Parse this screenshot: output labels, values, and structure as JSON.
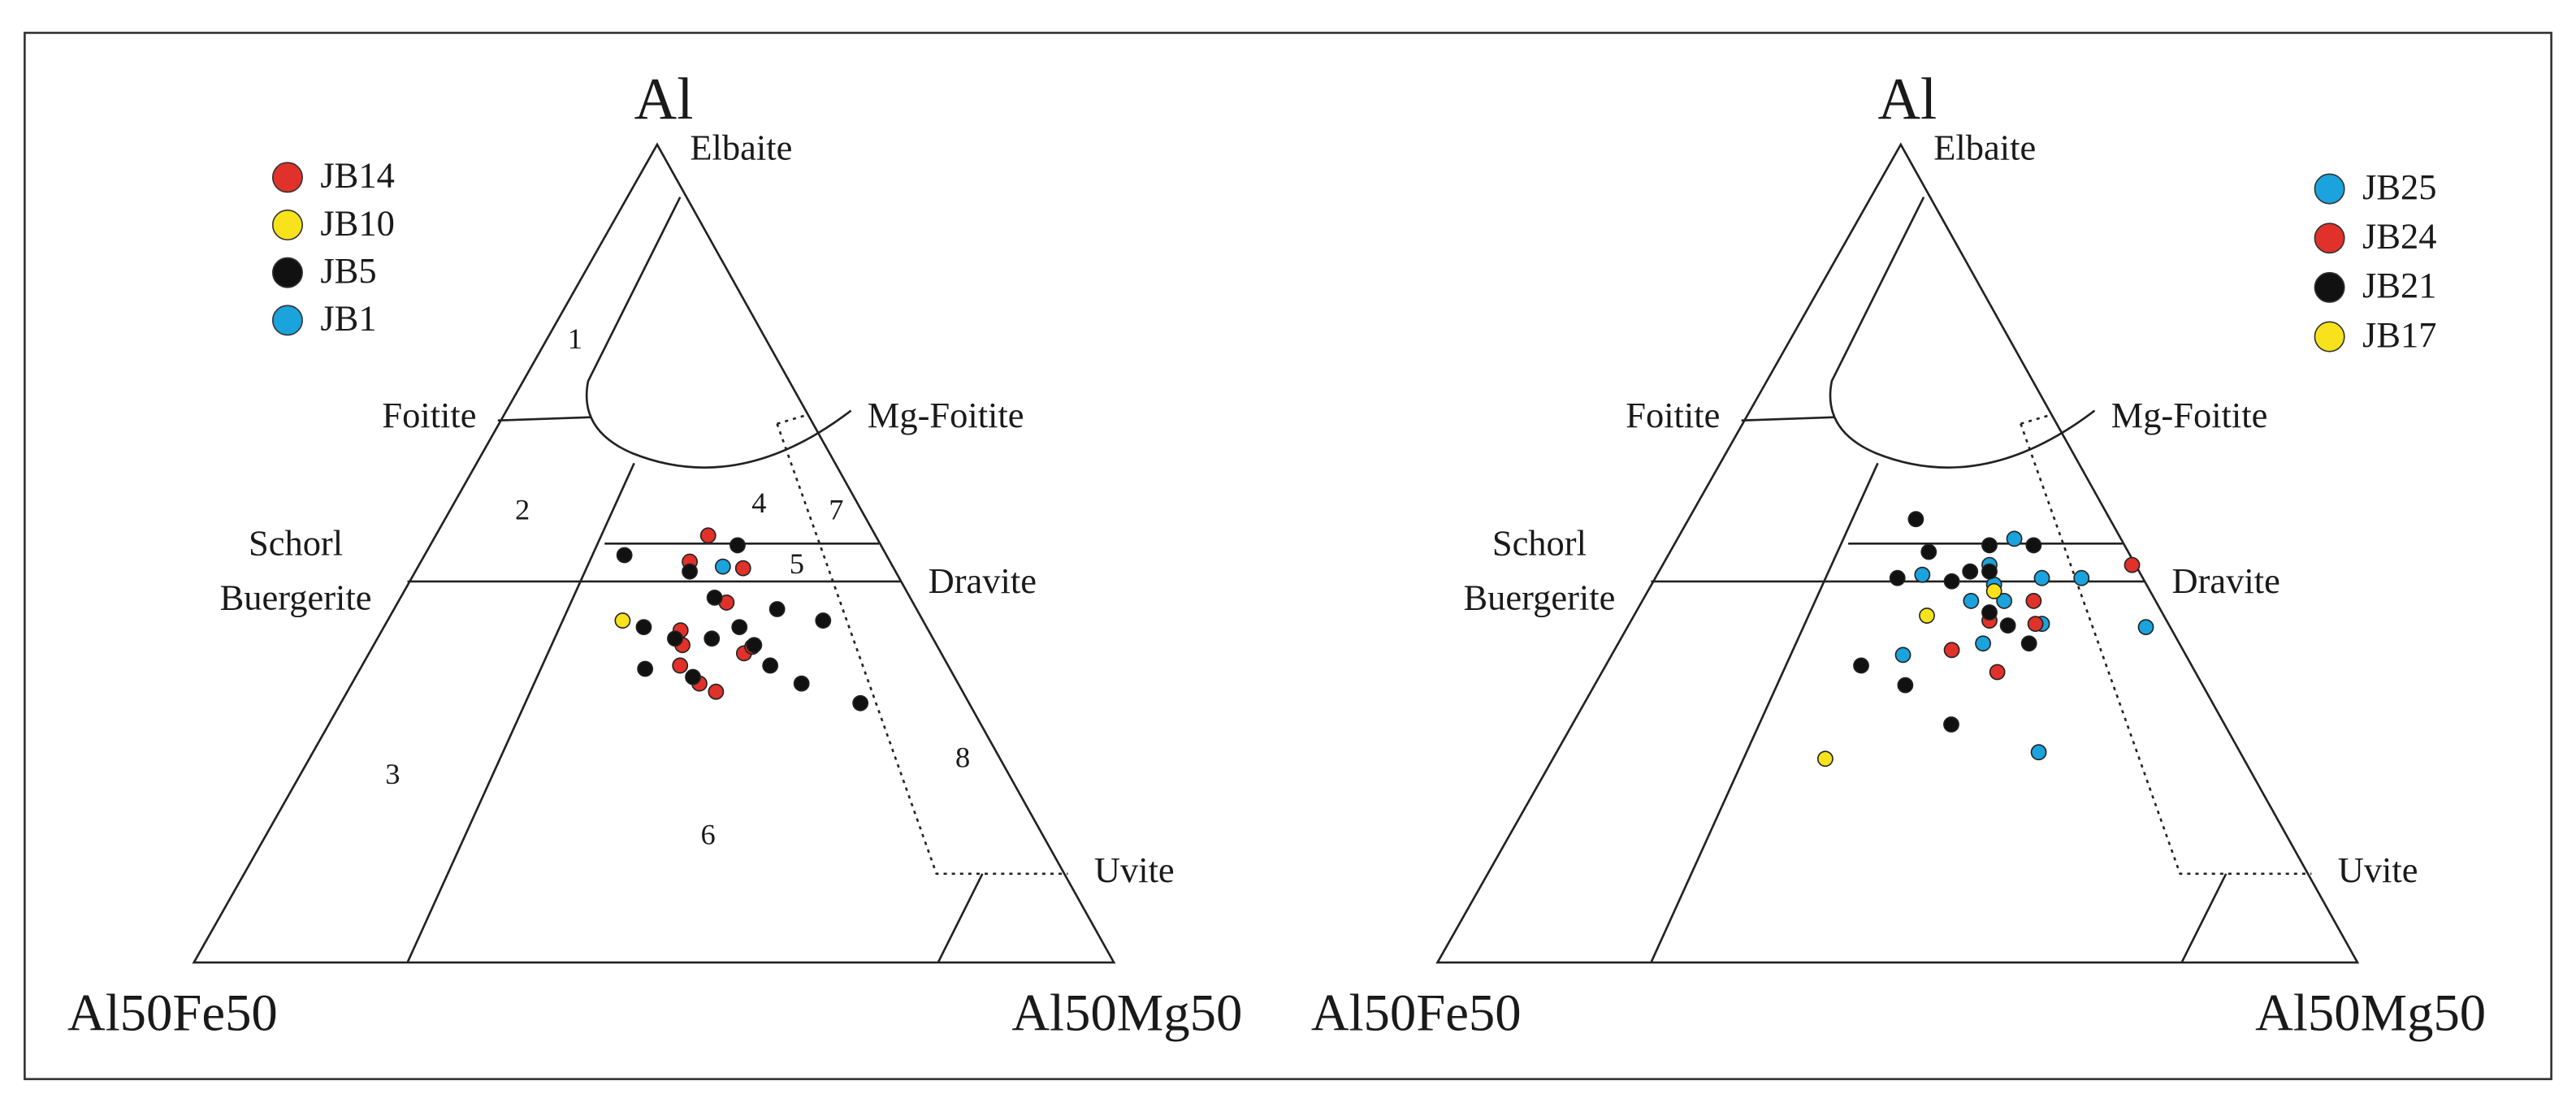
{
  "chart_data": [
    {
      "type": "ternary",
      "apex_label": "Al",
      "left_label": "Al50Fe50",
      "right_label": "Al50Mg50",
      "end_members": [
        "Elbaite",
        "Foitite",
        "Mg-Foitite",
        "Schorl",
        "Buergerite",
        "Dravite",
        "Uvite"
      ],
      "fields": [
        "1",
        "2",
        "3",
        "4",
        "5",
        "6",
        "7",
        "8"
      ],
      "legend": "upper left",
      "series": [
        {
          "name": "JB14",
          "color": "#e0312a",
          "al": [
            0.522,
            0.49,
            0.482,
            0.44,
            0.406,
            0.388,
            0.363,
            0.341,
            0.331,
            0.378,
            0.386
          ],
          "mg": [
            0.298,
            0.294,
            0.356,
            0.359,
            0.326,
            0.337,
            0.347,
            0.379,
            0.402,
            0.409,
            0.414
          ]
        },
        {
          "name": "JB10",
          "color": "#f7e21b",
          "al": [
            0.418
          ],
          "mg": [
            0.257
          ]
        },
        {
          "name": "JB5",
          "color": "#111111",
          "al": [
            0.498,
            0.51,
            0.478,
            0.446,
            0.41,
            0.396,
            0.396,
            0.41,
            0.432,
            0.418,
            0.359,
            0.349,
            0.363,
            0.341,
            0.317,
            0.388
          ],
          "mg": [
            0.219,
            0.336,
            0.3,
            0.343,
            0.284,
            0.325,
            0.365,
            0.388,
            0.418,
            0.475,
            0.311,
            0.368,
            0.445,
            0.49,
            0.566,
            0.415
          ]
        },
        {
          "name": "JB1",
          "color": "#1aa3dc",
          "al": [
            0.484
          ],
          "mg": [
            0.333
          ]
        }
      ]
    },
    {
      "type": "ternary",
      "apex_label": "Al",
      "left_label": "Al50Fe50",
      "right_label": "Al50Mg50",
      "end_members": [
        "Elbaite",
        "Foitite",
        "Mg-Foitite",
        "Schorl",
        "Buergerite",
        "Dravite",
        "Uvite"
      ],
      "legend": "upper right",
      "series": [
        {
          "name": "JB25",
          "color": "#1aa3dc",
          "al": [
            0.518,
            0.486,
            0.474,
            0.47,
            0.47,
            0.442,
            0.442,
            0.414,
            0.41,
            0.376,
            0.39,
            0.257,
            0.462
          ],
          "mg": [
            0.368,
            0.357,
            0.29,
            0.422,
            0.465,
            0.359,
            0.395,
            0.45,
            0.565,
            0.318,
            0.398,
            0.525,
            0.374
          ]
        },
        {
          "name": "JB24",
          "color": "#e0312a",
          "al": [
            0.486,
            0.442,
            0.418,
            0.414,
            0.382,
            0.355
          ],
          "mg": [
            0.512,
            0.427,
            0.391,
            0.443,
            0.368,
            0.431
          ]
        },
        {
          "name": "JB21",
          "color": "#111111",
          "al": [
            0.542,
            0.502,
            0.51,
            0.51,
            0.478,
            0.47,
            0.466,
            0.478,
            0.428,
            0.412,
            0.39,
            0.363,
            0.339,
            0.291
          ],
          "mg": [
            0.249,
            0.283,
            0.345,
            0.393,
            0.34,
            0.265,
            0.326,
            0.361,
            0.386,
            0.414,
            0.448,
            0.279,
            0.339,
            0.413
          ]
        },
        {
          "name": "JB17",
          "color": "#f7e21b",
          "al": [
            0.454,
            0.424,
            0.249
          ],
          "mg": [
            0.378,
            0.32,
            0.297
          ]
        }
      ]
    }
  ]
}
